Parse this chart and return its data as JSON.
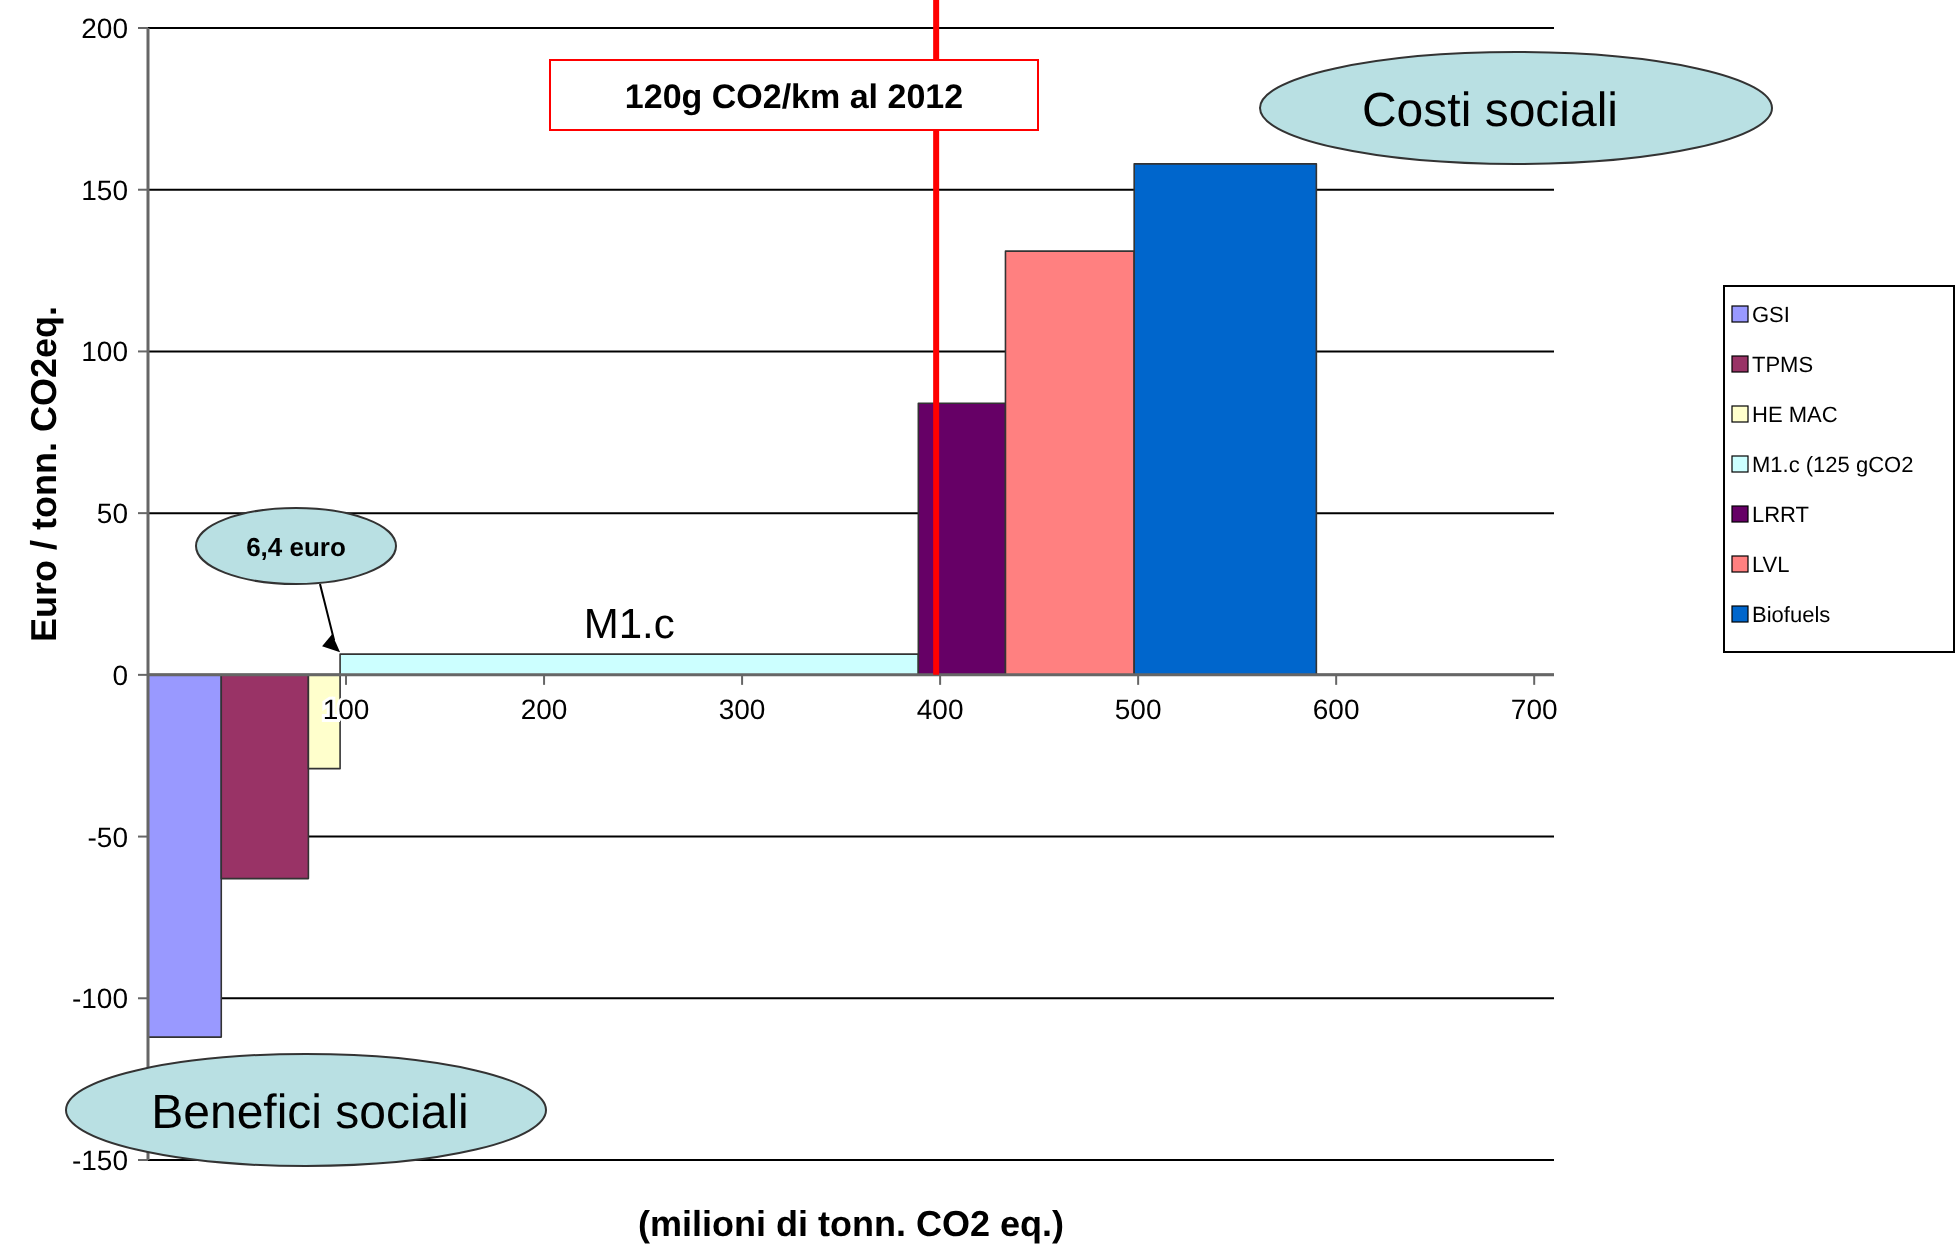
{
  "chart_data": {
    "type": "area",
    "xlabel": "(milioni di tonn. CO2 eq.)",
    "ylabel": "Euro / tonn. CO2eq.",
    "xlim": [
      0,
      710
    ],
    "xticks": [
      100,
      200,
      300,
      400,
      500,
      600,
      700
    ],
    "ylim": [
      -150,
      200
    ],
    "yticks": [
      -150,
      -100,
      -50,
      0,
      50,
      100,
      150,
      200
    ],
    "grid": "y",
    "legend": "right",
    "series": [
      {
        "name": "GSI",
        "color": "#9999ff",
        "x": [
          0,
          37
        ],
        "values": [
          -112,
          -112
        ]
      },
      {
        "name": "TPMS",
        "color": "#993366",
        "x": [
          37,
          81
        ],
        "values": [
          -63,
          -63
        ]
      },
      {
        "name": "HE MAC",
        "color": "#ffffcc",
        "x": [
          81,
          97
        ],
        "values": [
          -29,
          -29
        ]
      },
      {
        "name": "M1.c (125 gCO2",
        "color": "#ccffff",
        "x": [
          97,
          389
        ],
        "values": [
          6.4,
          6.4
        ]
      },
      {
        "name": "LRRT",
        "color": "#660066",
        "x": [
          389,
          433
        ],
        "values": [
          84,
          84
        ]
      },
      {
        "name": "LVL",
        "color": "#ff8080",
        "x": [
          433,
          498
        ],
        "values": [
          131,
          131
        ]
      },
      {
        "name": "Biofuels",
        "color": "#0066cc",
        "x": [
          498,
          590
        ],
        "values": [
          158,
          158
        ]
      }
    ],
    "ref_lines": [
      {
        "axis": "x",
        "value": 398,
        "label": "120g CO2/km al 2012",
        "color": "#ff0000"
      }
    ],
    "annotations": [
      {
        "text": "M1.c",
        "x": 243,
        "y": 6.4
      },
      {
        "text": "6,4 euro",
        "x": 97,
        "y": 6.4
      },
      "Costi sociali",
      "Benefici sociali"
    ]
  }
}
